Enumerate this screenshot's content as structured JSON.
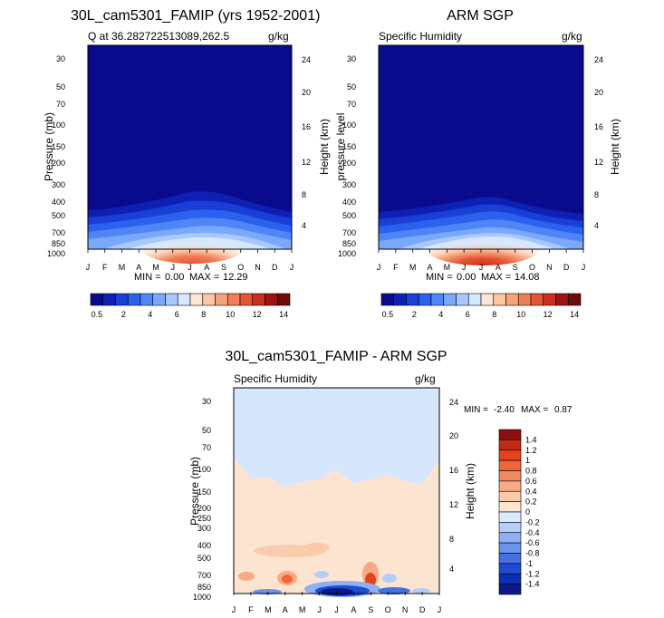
{
  "chart_data": [
    {
      "type": "contour",
      "title": "30L_cam5301_FAMIP (yrs 1952-2001)",
      "subtitle_left": "Q at 36.282722513089,262.5",
      "units": "g/kg",
      "xlabel": "",
      "ylabel": "Pressure (mb)",
      "ylabel_right": "Height (km)",
      "months": [
        "J",
        "F",
        "M",
        "A",
        "M",
        "J",
        "J",
        "A",
        "S",
        "O",
        "N",
        "D",
        "J"
      ],
      "pressure_ticks": [
        30,
        50,
        70,
        100,
        150,
        200,
        250,
        300,
        400,
        500,
        700,
        850,
        1000
      ],
      "pressure_tick_labels": [
        "30",
        "50",
        "70",
        "100",
        "150",
        "200",
        "300",
        "400",
        "500",
        "700",
        "850",
        "1000"
      ],
      "height_ticks_km": [
        4,
        8,
        12,
        16,
        20,
        24
      ],
      "min_label": "MIN =",
      "min": "0.00",
      "max_label": "MAX =",
      "max": "12.29",
      "peak_pressure_mb": 960,
      "peak_month": 6.8
    },
    {
      "type": "contour",
      "title": "ARM SGP",
      "subtitle_left": "Specific Humidity",
      "units": "g/kg",
      "ylabel": "pressure level",
      "ylabel_right": "Height (km)",
      "months": [
        "J",
        "F",
        "M",
        "A",
        "M",
        "J",
        "J",
        "A",
        "S",
        "O",
        "N",
        "D",
        "J"
      ],
      "pressure_tick_labels": [
        "30",
        "50",
        "70",
        "100",
        "150",
        "200",
        "300",
        "400",
        "500",
        "700",
        "850",
        "1000"
      ],
      "height_ticks_km": [
        4,
        8,
        12,
        16,
        20,
        24
      ],
      "min_label": "MIN =",
      "min": "0.00",
      "max_label": "MAX =",
      "max": "14.08",
      "peak_pressure_mb": 960,
      "peak_month": 6.6
    },
    {
      "type": "contour",
      "title": "30L_cam5301_FAMIP - ARM SGP",
      "subtitle_left": "Specific Humidity",
      "units": "g/kg",
      "ylabel": "Pressure (mb)",
      "ylabel_right": "Height (km)",
      "months": [
        "J",
        "F",
        "M",
        "A",
        "M",
        "J",
        "J",
        "A",
        "S",
        "O",
        "N",
        "D",
        "J"
      ],
      "pressure_tick_labels": [
        "30",
        "50",
        "70",
        "100",
        "150",
        "200",
        "250",
        "300",
        "400",
        "500",
        "700",
        "850",
        "1000"
      ],
      "height_ticks_km": [
        4,
        8,
        12,
        16,
        20,
        24
      ],
      "min_label": "MIN =",
      "min": "-2.40",
      "max_label": "MAX =",
      "max": "0.87",
      "zero_line_pressure_by_month": [
        [
          0,
          80
        ],
        [
          1,
          118
        ],
        [
          2,
          115
        ],
        [
          3,
          140
        ],
        [
          4,
          125
        ],
        [
          5,
          120
        ],
        [
          6,
          100
        ],
        [
          7,
          130
        ],
        [
          8,
          120
        ],
        [
          9,
          110
        ],
        [
          10,
          125
        ],
        [
          11,
          130
        ],
        [
          12,
          85
        ]
      ]
    }
  ],
  "colorbar_top": {
    "labels": [
      "0.5",
      "2",
      "4",
      "6",
      "8",
      "10",
      "12",
      "14"
    ],
    "colors": [
      "#0a0a8c",
      "#0e1fb4",
      "#1a3fd6",
      "#2a62ee",
      "#4f86f7",
      "#7aa8fb",
      "#a8c8fe",
      "#d6e8ff",
      "#fde7d4",
      "#fbc7a5",
      "#f7a37a",
      "#f07d55",
      "#e55433",
      "#c9301f",
      "#9e1313",
      "#6d0a0a"
    ],
    "label_positions": [
      0,
      2,
      4,
      6,
      8,
      10,
      12,
      14
    ]
  },
  "colorbar_diff": {
    "labels": [
      "1.4",
      "1.2",
      "1",
      "0.8",
      "0.6",
      "0.4",
      "0.2",
      "0",
      "-0.2",
      "-0.4",
      "-0.6",
      "-0.8",
      "-1",
      "-1.2",
      "-1.4"
    ],
    "colors": [
      "#8b0f0f",
      "#c22a14",
      "#e4431c",
      "#f0653a",
      "#f38a5f",
      "#f6aa85",
      "#f9c9aa",
      "#fde4d1",
      "#dceaff",
      "#b4cdfa",
      "#8eb0f5",
      "#6a92ee",
      "#4470e4",
      "#1f4bd3",
      "#0f2cb4",
      "#0a1a8a"
    ]
  },
  "colors": {
    "low": "#0a0a8c",
    "deep_blue": "#0e1fb4",
    "diff_background": "#d6e6fd",
    "diff_positive": "#fde4d1"
  }
}
